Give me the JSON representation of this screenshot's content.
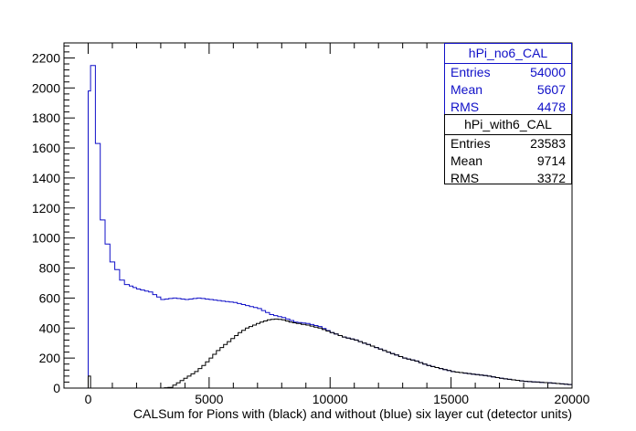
{
  "chart_data": {
    "type": "histogram",
    "title": "",
    "xlabel": "CALSum for Pions with (black) and without (blue) six layer cut (detector units)",
    "ylabel": "",
    "xlim": [
      -1000,
      20000
    ],
    "ylim": [
      0,
      2300
    ],
    "x_ticks": [
      "0",
      "5000",
      "10000",
      "15000",
      "20000"
    ],
    "y_ticks": [
      "0",
      "200",
      "400",
      "600",
      "800",
      "1000",
      "1200",
      "1400",
      "1600",
      "1800",
      "2000",
      "2200"
    ],
    "bin_width": 200,
    "series": [
      {
        "name": "hPi_no6_CAL",
        "color": "#1010c8",
        "points": [
          [
            -100,
            0
          ],
          [
            0,
            1980
          ],
          [
            100,
            2150
          ],
          [
            300,
            1630
          ],
          [
            500,
            1120
          ],
          [
            700,
            960
          ],
          [
            900,
            840
          ],
          [
            1100,
            790
          ],
          [
            1300,
            720
          ],
          [
            1500,
            690
          ],
          [
            1700,
            680
          ],
          [
            2000,
            660
          ],
          [
            2500,
            640
          ],
          [
            3000,
            590
          ],
          [
            3500,
            600
          ],
          [
            4000,
            590
          ],
          [
            4500,
            600
          ],
          [
            5000,
            590
          ],
          [
            5500,
            580
          ],
          [
            6000,
            570
          ],
          [
            6500,
            550
          ],
          [
            7000,
            530
          ],
          [
            7500,
            490
          ],
          [
            8000,
            470
          ],
          [
            8500,
            440
          ],
          [
            9000,
            430
          ],
          [
            9500,
            410
          ],
          [
            10000,
            370
          ],
          [
            10500,
            340
          ],
          [
            11000,
            320
          ],
          [
            11500,
            290
          ],
          [
            12000,
            260
          ],
          [
            12500,
            230
          ],
          [
            13000,
            200
          ],
          [
            13500,
            180
          ],
          [
            14000,
            150
          ],
          [
            14500,
            130
          ],
          [
            15000,
            110
          ],
          [
            15500,
            100
          ],
          [
            16000,
            90
          ],
          [
            16500,
            80
          ],
          [
            17000,
            65
          ],
          [
            17500,
            55
          ],
          [
            18000,
            45
          ],
          [
            18500,
            40
          ],
          [
            19000,
            35
          ],
          [
            19500,
            28
          ],
          [
            20000,
            22
          ]
        ]
      },
      {
        "name": "hPi_with6_CAL",
        "color": "#000000",
        "points": [
          [
            -100,
            0
          ],
          [
            0,
            80
          ],
          [
            100,
            0
          ],
          [
            3000,
            0
          ],
          [
            3300,
            5
          ],
          [
            3500,
            20
          ],
          [
            3800,
            50
          ],
          [
            4100,
            80
          ],
          [
            4400,
            110
          ],
          [
            4700,
            150
          ],
          [
            5000,
            200
          ],
          [
            5300,
            250
          ],
          [
            5600,
            290
          ],
          [
            5900,
            330
          ],
          [
            6200,
            370
          ],
          [
            6500,
            400
          ],
          [
            6800,
            420
          ],
          [
            7100,
            440
          ],
          [
            7400,
            455
          ],
          [
            7700,
            460
          ],
          [
            8000,
            455
          ],
          [
            8300,
            440
          ],
          [
            8600,
            430
          ],
          [
            9000,
            420
          ],
          [
            9500,
            400
          ],
          [
            10000,
            370
          ],
          [
            10500,
            340
          ],
          [
            11000,
            320
          ],
          [
            11500,
            290
          ],
          [
            12000,
            260
          ],
          [
            12500,
            230
          ],
          [
            13000,
            200
          ],
          [
            13500,
            180
          ],
          [
            14000,
            150
          ],
          [
            14500,
            130
          ],
          [
            15000,
            110
          ],
          [
            15500,
            100
          ],
          [
            16000,
            90
          ],
          [
            16500,
            80
          ],
          [
            17000,
            65
          ],
          [
            17500,
            55
          ],
          [
            18000,
            45
          ],
          [
            18500,
            40
          ],
          [
            19000,
            35
          ],
          [
            19500,
            28
          ],
          [
            20000,
            22
          ]
        ]
      }
    ]
  },
  "stats_blue": {
    "title": "hPi_no6_CAL",
    "entries_label": "Entries",
    "entries": "54000",
    "mean_label": "Mean",
    "mean": "5607",
    "rms_label": "RMS",
    "rms": "4478"
  },
  "stats_black": {
    "title": "hPi_with6_CAL",
    "entries_label": "Entries",
    "entries": "23583",
    "mean_label": "Mean",
    "mean": "9714",
    "rms_label": "RMS",
    "rms": "3372"
  }
}
